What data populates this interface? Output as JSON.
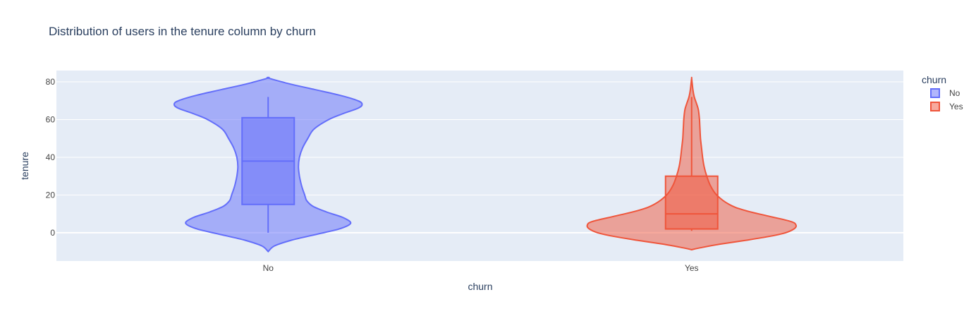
{
  "chart_data": {
    "type": "violin",
    "title": "Distribution of users in the tenure column by churn",
    "xlabel": "churn",
    "ylabel": "tenure",
    "ylim": [
      -15,
      86
    ],
    "yticks": [
      0,
      20,
      40,
      60,
      80
    ],
    "grid": true,
    "plot_background": "#e5ecf6",
    "legend": {
      "title": "churn",
      "position": "top-right"
    },
    "categories": [
      "No",
      "Yes"
    ],
    "series": [
      {
        "name": "No",
        "category": "No",
        "color": "#636efa",
        "box": {
          "q1": 15,
          "median": 38,
          "q3": 61,
          "lower_fence": 0,
          "upper_fence": 72
        },
        "density": [
          [
            -10,
            0.0
          ],
          [
            -7,
            0.06
          ],
          [
            -4,
            0.22
          ],
          [
            -1,
            0.45
          ],
          [
            2,
            0.68
          ],
          [
            5,
            0.79
          ],
          [
            8,
            0.72
          ],
          [
            11,
            0.56
          ],
          [
            14,
            0.43
          ],
          [
            17,
            0.37
          ],
          [
            20,
            0.35
          ],
          [
            25,
            0.32
          ],
          [
            30,
            0.3
          ],
          [
            35,
            0.29
          ],
          [
            40,
            0.3
          ],
          [
            45,
            0.33
          ],
          [
            50,
            0.38
          ],
          [
            55,
            0.44
          ],
          [
            60,
            0.58
          ],
          [
            63,
            0.71
          ],
          [
            66,
            0.86
          ],
          [
            68,
            0.9
          ],
          [
            70,
            0.86
          ],
          [
            73,
            0.68
          ],
          [
            76,
            0.44
          ],
          [
            79,
            0.2
          ],
          [
            82,
            0.0
          ]
        ]
      },
      {
        "name": "Yes",
        "category": "Yes",
        "color": "#ef553b",
        "box": {
          "q1": 2,
          "median": 10,
          "q3": 30,
          "lower_fence": 1,
          "upper_fence": 72
        },
        "density": [
          [
            -9,
            0.0
          ],
          [
            -8,
            0.08
          ],
          [
            -6,
            0.28
          ],
          [
            -4,
            0.52
          ],
          [
            -2,
            0.74
          ],
          [
            0,
            0.9
          ],
          [
            2,
            0.98
          ],
          [
            4,
            1.0
          ],
          [
            6,
            0.95
          ],
          [
            9,
            0.72
          ],
          [
            12,
            0.5
          ],
          [
            15,
            0.36
          ],
          [
            20,
            0.24
          ],
          [
            25,
            0.18
          ],
          [
            30,
            0.145
          ],
          [
            35,
            0.12
          ],
          [
            40,
            0.105
          ],
          [
            45,
            0.095
          ],
          [
            50,
            0.085
          ],
          [
            55,
            0.08
          ],
          [
            60,
            0.075
          ],
          [
            65,
            0.065
          ],
          [
            68,
            0.05
          ],
          [
            72,
            0.025
          ],
          [
            76,
            0.012
          ],
          [
            79,
            0.006
          ],
          [
            82,
            0.0
          ]
        ]
      }
    ]
  }
}
